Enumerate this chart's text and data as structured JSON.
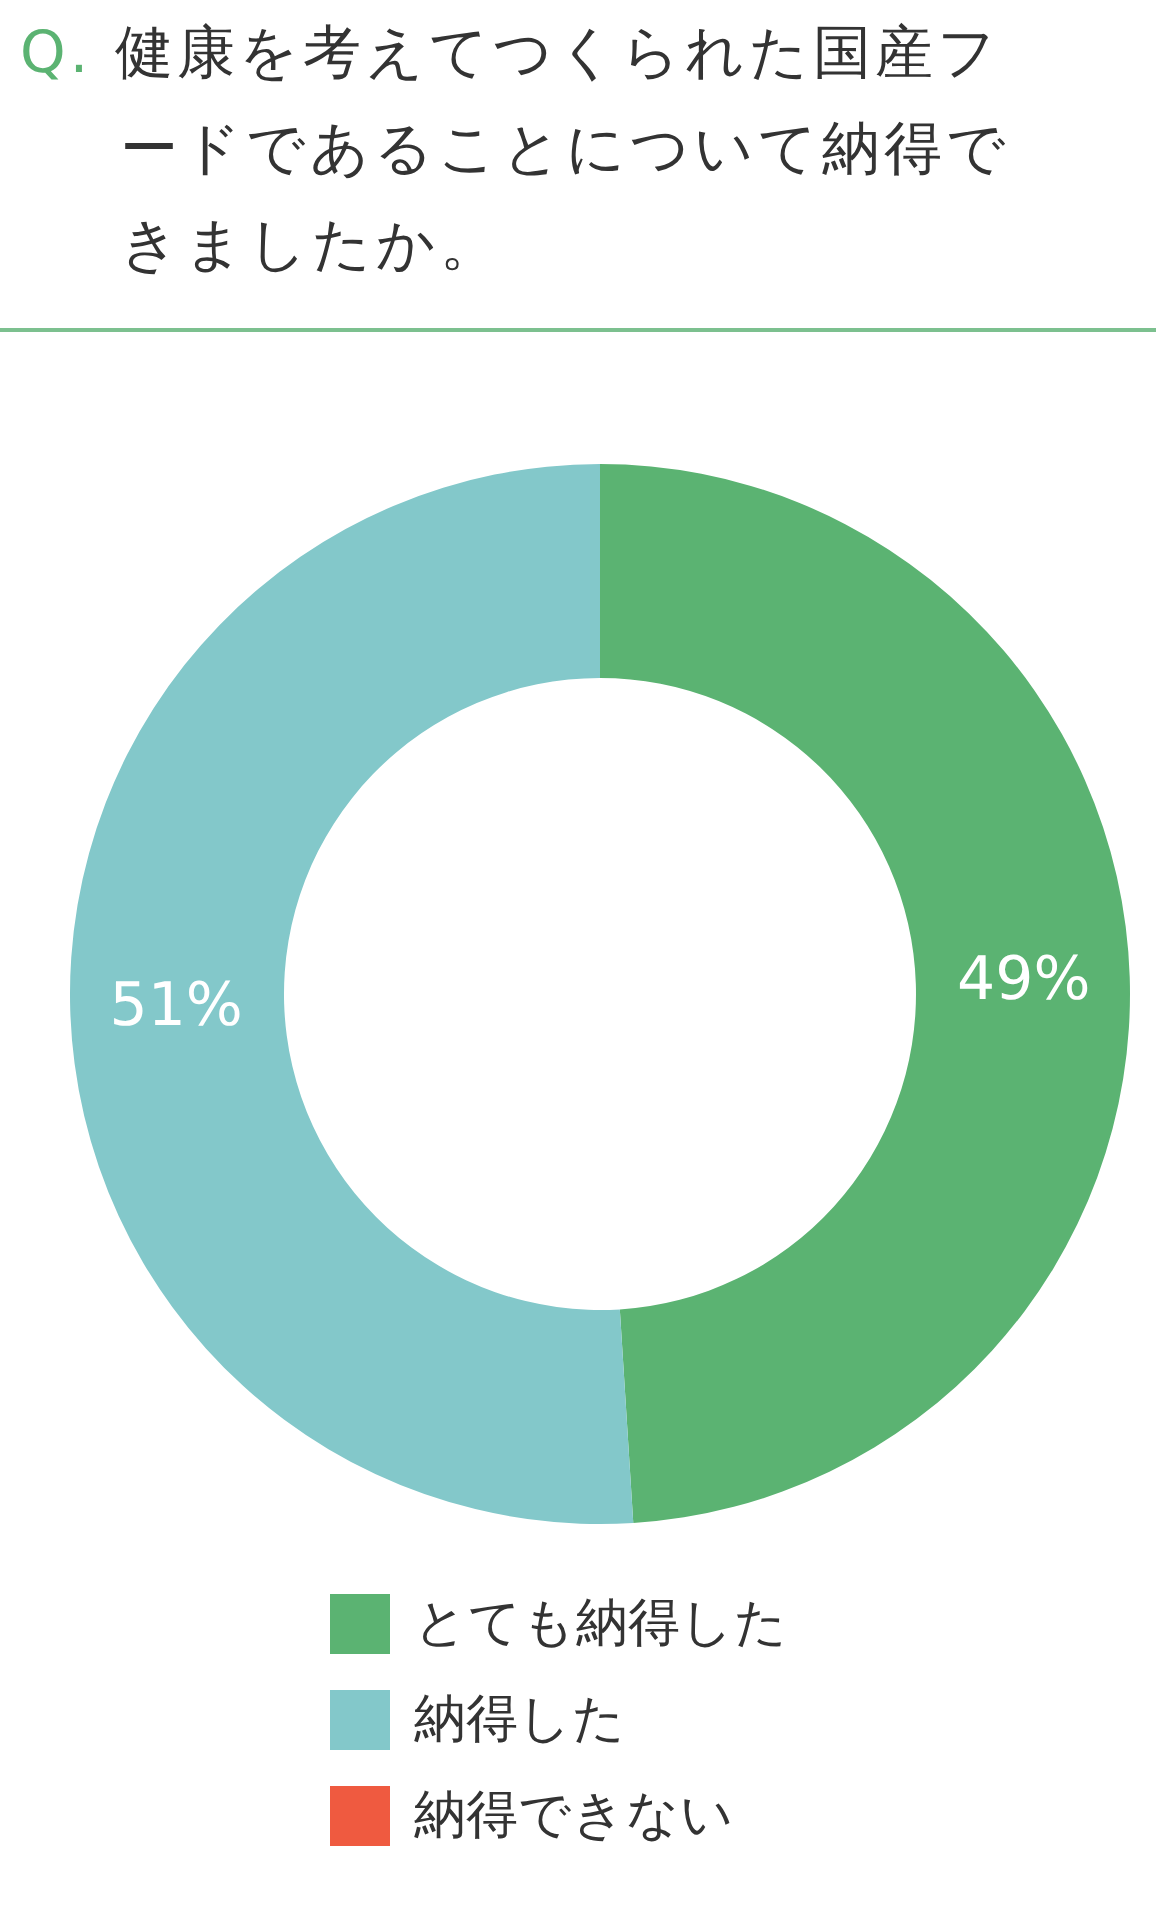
{
  "chart_data": {
    "type": "donut",
    "title": "Q. 健康を考えてつくられた国産フードであることについて納得できましたか。",
    "categories": [
      "とても納得した",
      "納得した",
      "納得できない"
    ],
    "values": [
      49,
      51,
      0
    ],
    "colors": [
      "#5bb372",
      "#83c8ca",
      "#ef5a40"
    ],
    "value_labels": [
      "49%",
      "51%",
      null
    ],
    "legend": "bottom"
  }
}
